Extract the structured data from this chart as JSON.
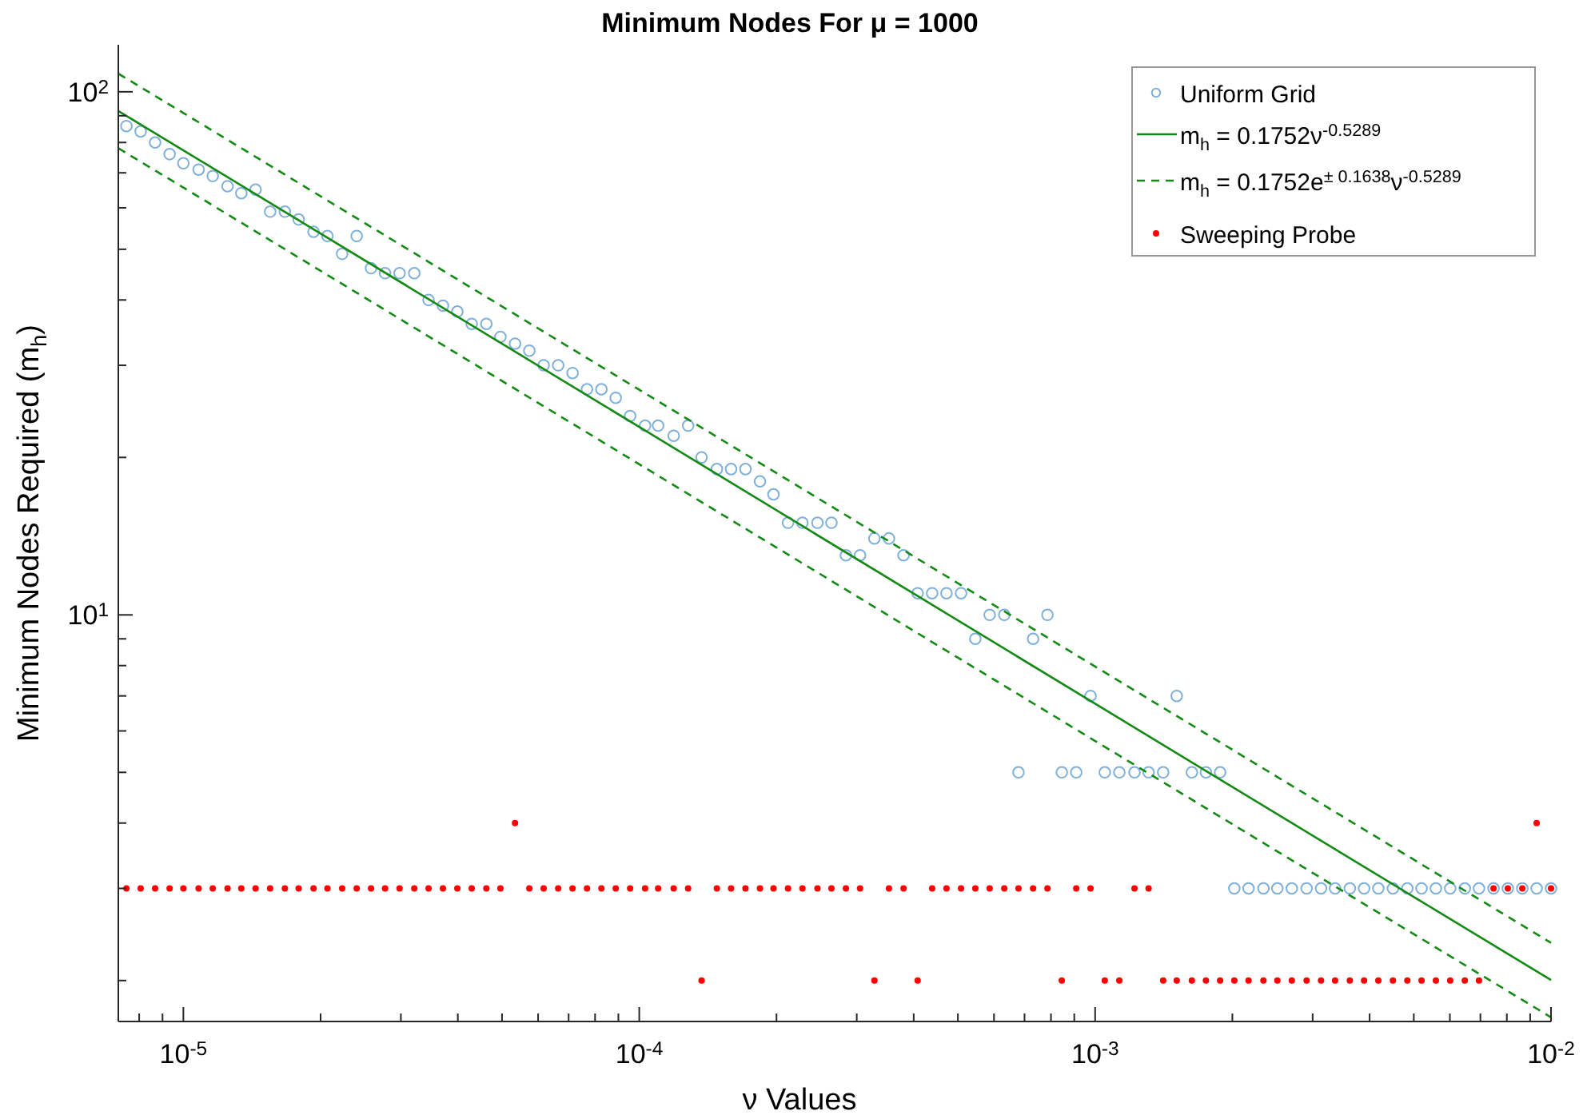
{
  "chart_data": {
    "type": "scatter",
    "title": "Minimum Nodes For μ = 1000",
    "xlabel": "ν Values",
    "ylabel": "Minimum Nodes Required (m$_{h}$)",
    "log": "xy",
    "grid": false,
    "legend": "top right",
    "xlim": [
      7.2e-06,
      0.01
    ],
    "ylim": [
      1.67,
      123
    ],
    "xticks": [
      {
        "value": 8e-06,
        "label": null
      },
      {
        "value": 9e-06,
        "label": null
      },
      {
        "value": 1e-05,
        "label": "10$^{-5}$"
      },
      {
        "value": 2e-05,
        "label": null
      },
      {
        "value": 3e-05,
        "label": null
      },
      {
        "value": 4e-05,
        "label": null
      },
      {
        "value": 5e-05,
        "label": null
      },
      {
        "value": 6e-05,
        "label": null
      },
      {
        "value": 7e-05,
        "label": null
      },
      {
        "value": 8e-05,
        "label": null
      },
      {
        "value": 9e-05,
        "label": null
      },
      {
        "value": 0.0001,
        "label": "10$^{-4}$"
      },
      {
        "value": 0.0002,
        "label": null
      },
      {
        "value": 0.0003,
        "label": null
      },
      {
        "value": 0.0004,
        "label": null
      },
      {
        "value": 0.0005,
        "label": null
      },
      {
        "value": 0.0006,
        "label": null
      },
      {
        "value": 0.0007,
        "label": null
      },
      {
        "value": 0.0008,
        "label": null
      },
      {
        "value": 0.0009,
        "label": null
      },
      {
        "value": 0.001,
        "label": "10$^{-3}$"
      },
      {
        "value": 0.002,
        "label": null
      },
      {
        "value": 0.003,
        "label": null
      },
      {
        "value": 0.004,
        "label": null
      },
      {
        "value": 0.005,
        "label": null
      },
      {
        "value": 0.006,
        "label": null
      },
      {
        "value": 0.007,
        "label": null
      },
      {
        "value": 0.008,
        "label": null
      },
      {
        "value": 0.009,
        "label": null
      },
      {
        "value": 0.01,
        "label": "10$^{-2}$"
      }
    ],
    "yticks": [
      {
        "value": 2,
        "label": null
      },
      {
        "value": 3,
        "label": null
      },
      {
        "value": 4,
        "label": null
      },
      {
        "value": 5,
        "label": null
      },
      {
        "value": 6,
        "label": null
      },
      {
        "value": 7,
        "label": null
      },
      {
        "value": 8,
        "label": null
      },
      {
        "value": 9,
        "label": null
      },
      {
        "value": 10,
        "label": "10$^{1}$"
      },
      {
        "value": 20,
        "label": null
      },
      {
        "value": 30,
        "label": null
      },
      {
        "value": 40,
        "label": null
      },
      {
        "value": 50,
        "label": null
      },
      {
        "value": 60,
        "label": null
      },
      {
        "value": 70,
        "label": null
      },
      {
        "value": 80,
        "label": null
      },
      {
        "value": 90,
        "label": null
      },
      {
        "value": 100,
        "label": "10$^{2}$"
      }
    ],
    "x": [
      7.5e-06,
      8.06e-06,
      8.67e-06,
      9.33e-06,
      1e-05,
      1.08e-05,
      1.16e-05,
      1.25e-05,
      1.34e-05,
      1.44e-05,
      1.55e-05,
      1.67e-05,
      1.79e-05,
      1.93e-05,
      2.07e-05,
      2.23e-05,
      2.4e-05,
      2.58e-05,
      2.77e-05,
      2.98e-05,
      3.21e-05,
      3.45e-05,
      3.71e-05,
      3.99e-05,
      4.29e-05,
      4.62e-05,
      4.96e-05,
      5.34e-05,
      5.74e-05,
      6.17e-05,
      6.64e-05,
      7.14e-05,
      7.68e-05,
      8.26e-05,
      8.88e-05,
      9.55e-05,
      0.000103,
      0.00011,
      0.000119,
      0.000128,
      0.000137,
      0.000148,
      0.000159,
      0.000171,
      0.000184,
      0.000197,
      0.000212,
      0.000228,
      0.000246,
      0.000264,
      0.000284,
      0.000305,
      0.000328,
      0.000353,
      0.00038,
      0.000408,
      0.000439,
      0.000472,
      0.000508,
      0.000546,
      0.000587,
      0.000632,
      0.000679,
      0.000731,
      0.000786,
      0.000845,
      0.000909,
      0.000977,
      0.00105,
      0.00113,
      0.00122,
      0.00131,
      0.00141,
      0.00151,
      0.00163,
      0.00175,
      0.00188,
      0.00202,
      0.00217,
      0.00234,
      0.00251,
      0.0027,
      0.00291,
      0.00313,
      0.00336,
      0.00362,
      0.00389,
      0.00418,
      0.0045,
      0.00484,
      0.0052,
      0.00559,
      0.00601,
      0.00647,
      0.00695,
      0.00748,
      0.00804,
      0.00865,
      0.0093,
      0.01
    ],
    "series": [
      {
        "name": "Uniform Grid",
        "marker": "circle",
        "color": "#7fb0da",
        "values": [
          86,
          84,
          80,
          76,
          73,
          71,
          69,
          66,
          64,
          65,
          59,
          59,
          57,
          54,
          53,
          49,
          53,
          46,
          45,
          45,
          45,
          40,
          39,
          38,
          36,
          36,
          34,
          33,
          32,
          30,
          30,
          29,
          27,
          27,
          26,
          24,
          23,
          23,
          22,
          23,
          20,
          19,
          19,
          19,
          18,
          17,
          15,
          15,
          15,
          15,
          13,
          13,
          14,
          14,
          13,
          11,
          11,
          11,
          11,
          9,
          10,
          10,
          5,
          9,
          10,
          5,
          5,
          7,
          5,
          5,
          5,
          5,
          5,
          7,
          5,
          5,
          5,
          3,
          3,
          3,
          3,
          3,
          3,
          3,
          3,
          3,
          3,
          3,
          3,
          3,
          3,
          3,
          3,
          3,
          3,
          3,
          3,
          3,
          3,
          3
        ]
      },
      {
        "name": "m$_{h}$ = 0.1752ν$^{-0.5289}$",
        "type": "line",
        "line_style": "solid",
        "color": "#138a13",
        "x": [
          7.2e-06,
          1e-05,
          0.0001,
          0.001,
          0.01
        ],
        "values": [
          91.9,
          77.3,
          22.87,
          6.763,
          2.004
        ]
      },
      {
        "name": "m$_{h}$ = 0.1752e$^{± 0.1638}$ν$^{-0.5289}$",
        "type": "line",
        "line_style": "dashed",
        "color": "#138a13",
        "x": [
          7.2e-06,
          1e-05,
          0.0001,
          0.001,
          0.01
        ],
        "values": [
          108.3,
          91.1,
          26.94,
          7.967,
          2.361
        ]
      },
      {
        "type": "line",
        "line_style": "dashed",
        "color": "#138a13",
        "x": [
          7.2e-06,
          1e-05,
          0.0001,
          0.001,
          0.01
        ],
        "values": [
          78.0,
          65.6,
          19.41,
          5.741,
          1.701
        ]
      },
      {
        "name": "Sweeping Probe",
        "marker": "circle",
        "color": "#ff0000",
        "values": [
          3,
          3,
          3,
          3,
          3,
          3,
          3,
          3,
          3,
          3,
          3,
          3,
          3,
          3,
          3,
          3,
          3,
          3,
          3,
          3,
          3,
          3,
          3,
          3,
          3,
          3,
          3,
          4,
          3,
          3,
          3,
          3,
          3,
          3,
          3,
          3,
          3,
          3,
          3,
          3,
          2,
          3,
          3,
          3,
          3,
          3,
          3,
          3,
          3,
          3,
          3,
          3,
          2,
          3,
          3,
          2,
          3,
          3,
          3,
          3,
          3,
          3,
          3,
          3,
          3,
          2,
          3,
          3,
          2,
          2,
          3,
          3,
          2,
          2,
          2,
          2,
          2,
          2,
          2,
          2,
          2,
          2,
          2,
          2,
          2,
          2,
          2,
          2,
          2,
          2,
          2,
          2,
          2,
          2,
          2,
          3,
          3,
          3,
          4,
          3
        ]
      }
    ]
  }
}
